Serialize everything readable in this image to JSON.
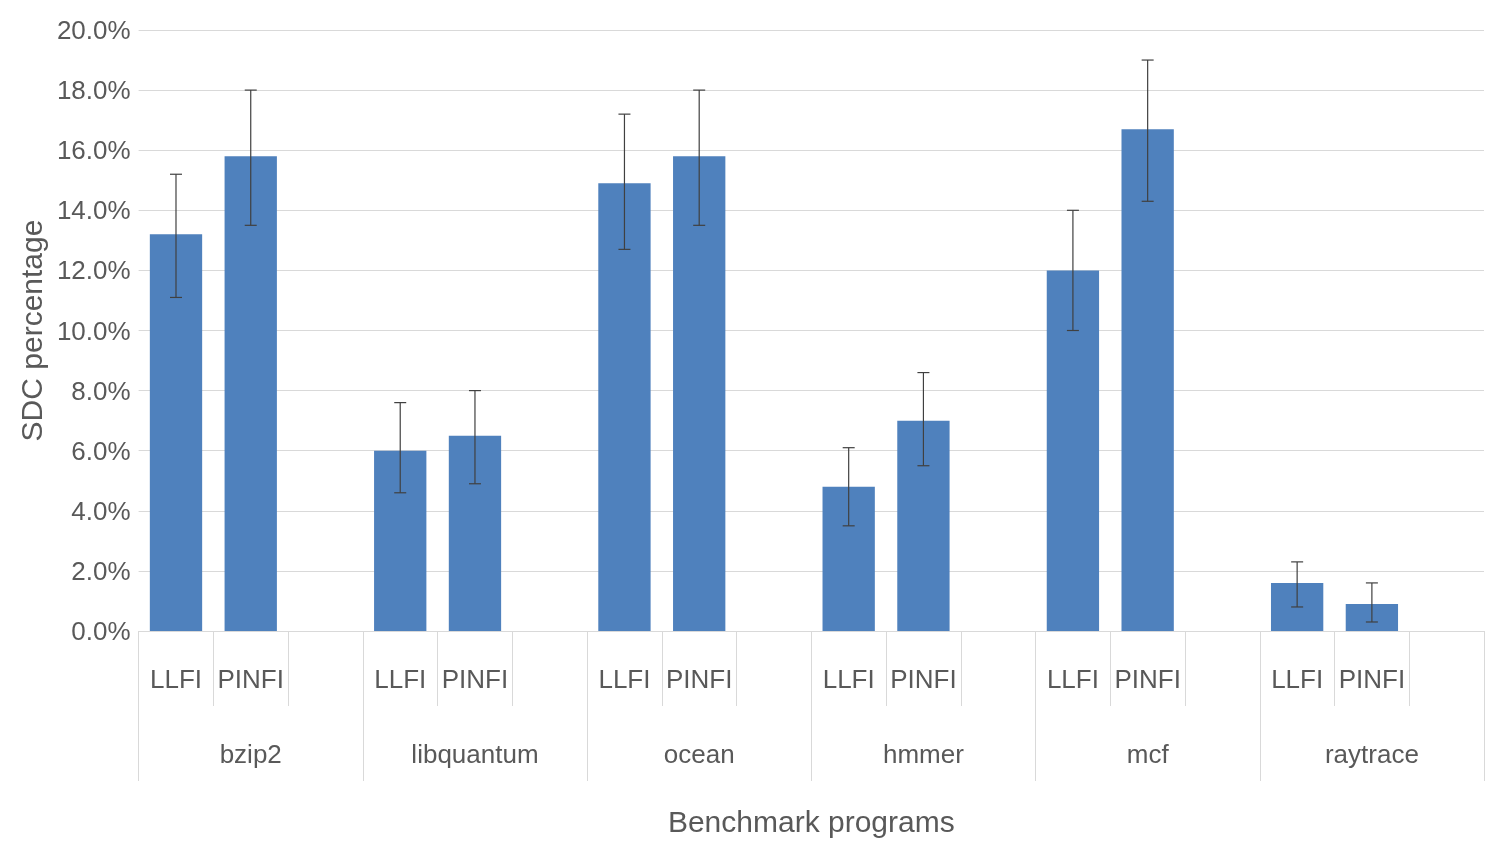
{
  "chart_data": {
    "type": "bar",
    "xlabel": "Benchmark programs",
    "ylabel": "SDC percentage",
    "categories": [
      "LLFI",
      "PINFI",
      null,
      "LLFI",
      "PINFI",
      null,
      "LLFI",
      "PINFI",
      null,
      "LLFI",
      "PINFI",
      null,
      "LLFI",
      "PINFI",
      null,
      "LLFI",
      "PINFI",
      null
    ],
    "annotations": [
      "bzip2",
      "libquantum",
      "ocean",
      "hmmer",
      "mcf",
      "raytrace"
    ],
    "values": [
      13.2,
      15.8,
      null,
      6.0,
      6.5,
      null,
      14.9,
      15.8,
      null,
      4.8,
      7.0,
      null,
      12.0,
      16.7,
      null,
      1.6,
      0.9,
      null
    ],
    "errors": [
      [
        11.1,
        15.2
      ],
      [
        13.5,
        18.0
      ],
      null,
      [
        4.6,
        7.6
      ],
      [
        4.9,
        8.0
      ],
      null,
      [
        12.7,
        17.2
      ],
      [
        13.5,
        18.0
      ],
      null,
      [
        3.5,
        6.1
      ],
      [
        5.5,
        8.6
      ],
      null,
      [
        10.0,
        14.0
      ],
      [
        14.3,
        19.0
      ],
      null,
      [
        0.8,
        2.3
      ],
      [
        0.3,
        1.6
      ],
      null
    ],
    "color": "#4f81bd",
    "ylim": [
      0,
      20
    ],
    "yticks": [
      {
        "value": 0,
        "label": "0.0%"
      },
      {
        "value": 2,
        "label": "2.0%"
      },
      {
        "value": 4,
        "label": "4.0%"
      },
      {
        "value": 6,
        "label": "6.0%"
      },
      {
        "value": 8,
        "label": "8.0%"
      },
      {
        "value": 10,
        "label": "10.0%"
      },
      {
        "value": 12,
        "label": "12.0%"
      },
      {
        "value": 14,
        "label": "14.0%"
      },
      {
        "value": 16,
        "label": "16.0%"
      },
      {
        "value": 18,
        "label": "18.0%"
      },
      {
        "value": 20,
        "label": "20.0%"
      }
    ],
    "grid": "y"
  }
}
